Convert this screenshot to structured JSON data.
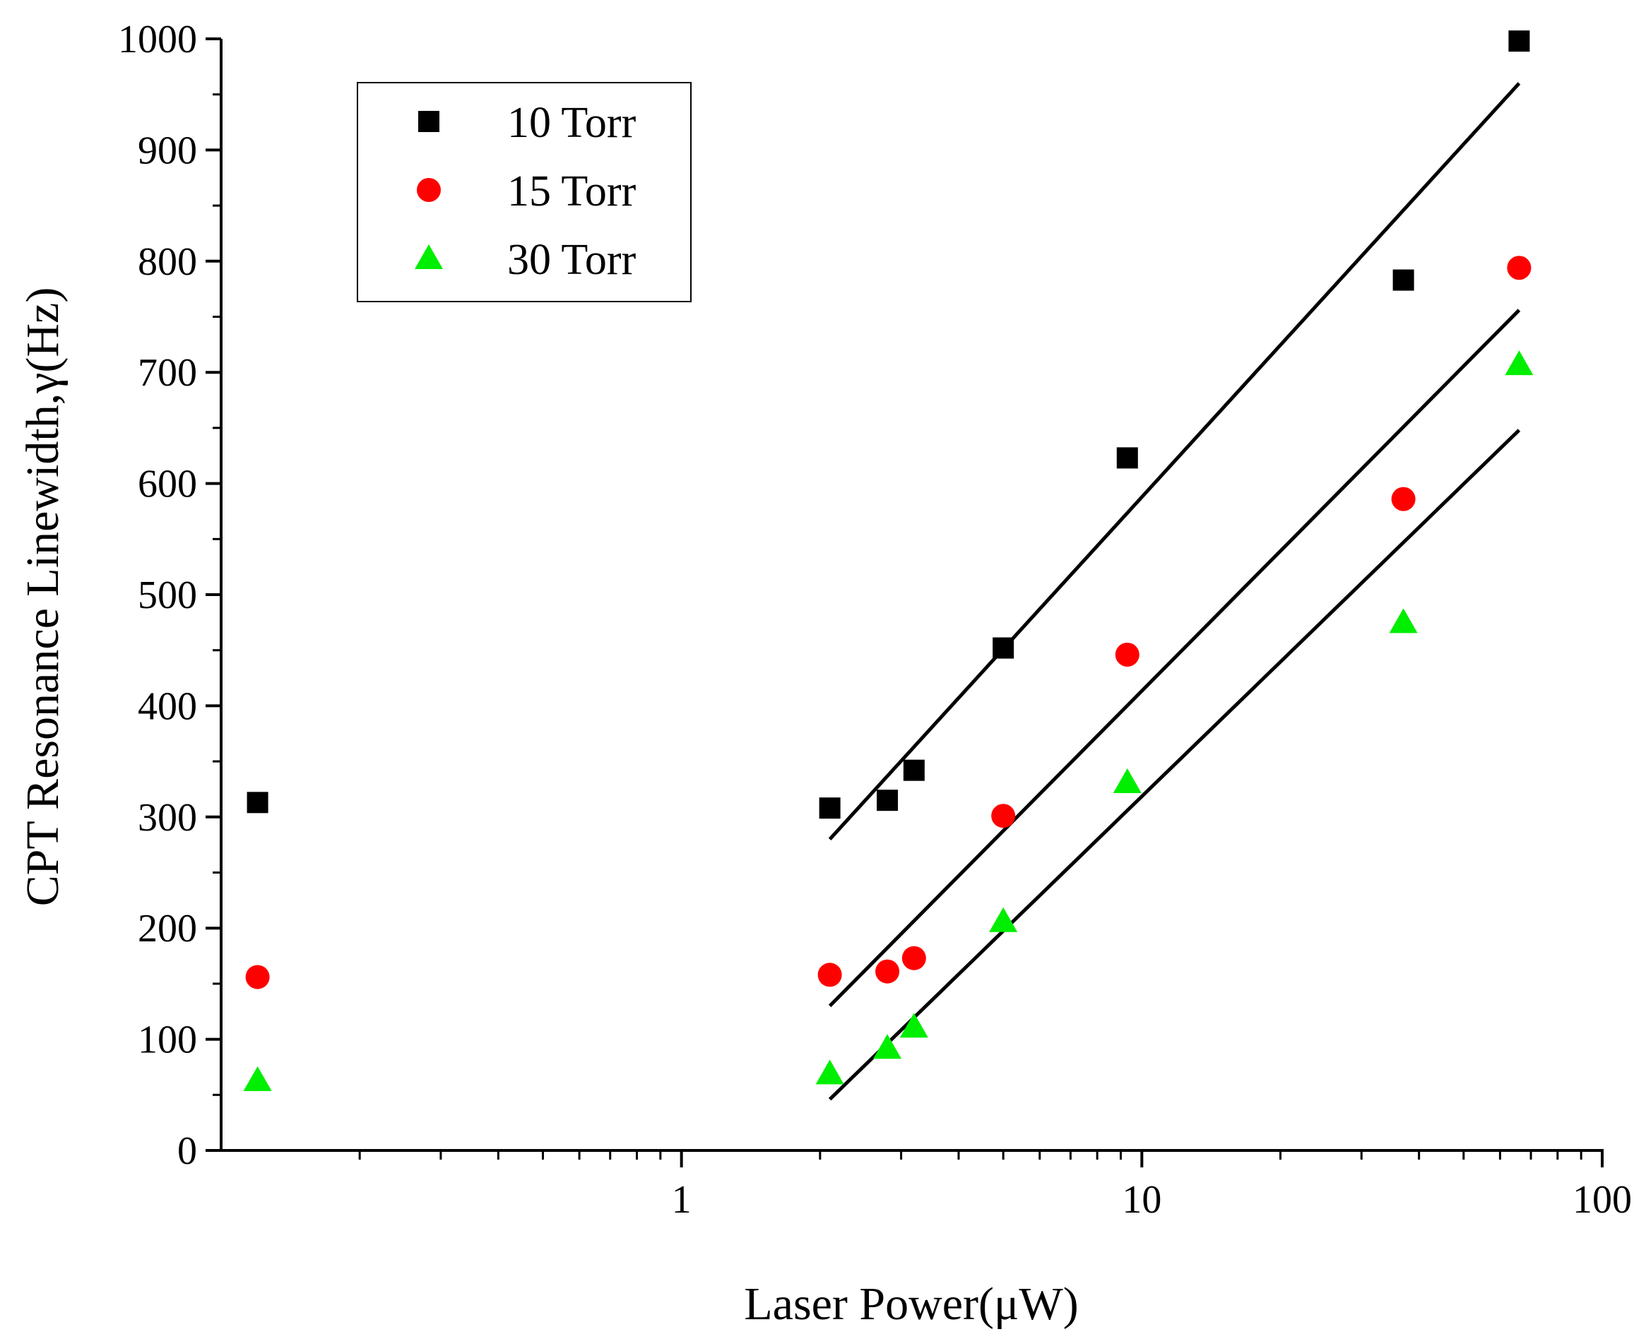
{
  "chart_data": {
    "type": "scatter",
    "title": "",
    "xlabel": "Laser Power(μW)",
    "ylabel": "CPT Resonance Linewidth,γ(Hz)",
    "xscale": "log",
    "xlim": [
      0.1,
      100
    ],
    "ylim": [
      0,
      1000
    ],
    "x_tick_labels": [
      "1",
      "10",
      "100"
    ],
    "x_tick_values": [
      1,
      10,
      100
    ],
    "y_tick_labels": [
      "0",
      "100",
      "200",
      "300",
      "400",
      "500",
      "600",
      "700",
      "800",
      "900",
      "1000"
    ],
    "y_tick_values": [
      0,
      100,
      200,
      300,
      400,
      500,
      600,
      700,
      800,
      900,
      1000
    ],
    "legend_position": "top-left",
    "series": [
      {
        "name": "10 Torr",
        "marker": "square",
        "color": "#000000",
        "x": [
          0.12,
          2.1,
          2.8,
          3.2,
          5.0,
          9.3,
          37,
          66
        ],
        "y": [
          313,
          308,
          315,
          342,
          452,
          623,
          783,
          998
        ],
        "fit": {
          "x": [
            2.1,
            66
          ],
          "y": [
            280,
            960
          ]
        }
      },
      {
        "name": "15 Torr",
        "marker": "circle",
        "color": "#ff0000",
        "x": [
          0.12,
          2.1,
          2.8,
          3.2,
          5.0,
          9.3,
          37,
          66
        ],
        "y": [
          156,
          158,
          161,
          173,
          301,
          446,
          586,
          794
        ],
        "fit": {
          "x": [
            2.1,
            66
          ],
          "y": [
            130,
            756
          ]
        }
      },
      {
        "name": "30 Torr",
        "marker": "triangle",
        "color": "#00ee00",
        "x": [
          0.12,
          2.1,
          2.8,
          3.2,
          5.0,
          9.3,
          37,
          66
        ],
        "y": [
          63,
          69,
          92,
          111,
          206,
          331,
          475,
          707
        ],
        "fit": {
          "x": [
            2.1,
            66
          ],
          "y": [
            46,
            648
          ]
        }
      }
    ]
  }
}
